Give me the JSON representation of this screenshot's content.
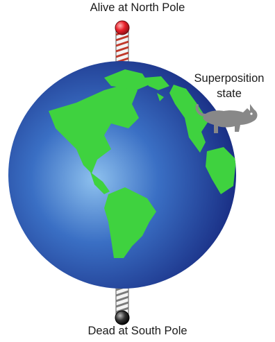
{
  "labels": {
    "north": "Alive at North Pole",
    "south": "Dead at South Pole",
    "superposition_line1": "Superposition",
    "superposition_line2": "state"
  },
  "colors": {
    "ocean_light": "#7fb4e6",
    "ocean_dark": "#1b3a8f",
    "land": "#3fd23f",
    "north_knob": "#e8202a",
    "south_knob": "#222222",
    "pole_stripe": "#c0392b",
    "cat": "#8a8a8a"
  },
  "icons": {
    "globe": "earth-globe-icon",
    "cat": "cat-icon"
  }
}
